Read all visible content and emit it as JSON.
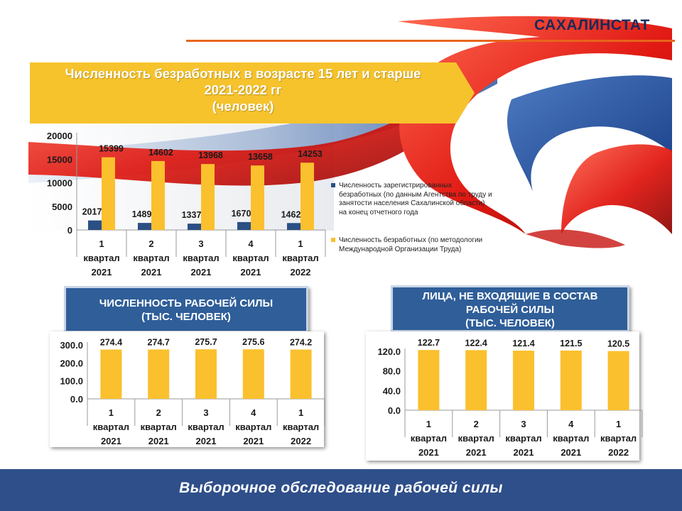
{
  "header": {
    "brand": "САХАЛИНСТАТ"
  },
  "banner": {
    "title_line1": "Численность безработных в возрасте 15 лет и старше",
    "title_line2": "2021-2022 гг",
    "title_line3": "(человек)"
  },
  "colors": {
    "gold": "#fbc02d",
    "navy": "#2a4f84",
    "banner": "#f6c32d",
    "footer": "#2f4f8a",
    "box": "#2f5e99"
  },
  "legend": {
    "registered": "Численность зарегистрированных безработных (по данным Агентства по труду и занятости населения Сахалинской области) на конец отчетного года",
    "ilo": "Численность безработных (по методологии Международной Организации Труда)"
  },
  "labor_box": {
    "line1": "ЧИСЛЕННОСТЬ РАБОЧЕЙ СИЛЫ",
    "line2": "(ТЫС. ЧЕЛОВЕК)"
  },
  "notlabor_box": {
    "line1": "ЛИЦА, НЕ ВХОДЯЩИЕ В СОСТАВ",
    "line2": "РАБОЧЕЙ СИЛЫ",
    "line3": "(ТЫС. ЧЕЛОВЕК)"
  },
  "footer": {
    "text": "Выборочное обследование рабочей силы"
  },
  "chart_data": [
    {
      "type": "bar",
      "title": "Численность безработных в возрасте 15 лет и старше 2021-2022 гг (человек)",
      "categories": [
        [
          "1",
          "квартал",
          "2021"
        ],
        [
          "2",
          "квартал",
          "2021"
        ],
        [
          "3",
          "квартал",
          "2021"
        ],
        [
          "4",
          "квартал",
          "2021"
        ],
        [
          "1",
          "квартал",
          "2022"
        ]
      ],
      "series": [
        {
          "name": "Численность зарегистрированных безработных (по данным Агентства по труду и занятости населения Сахалинской области) на конец отчетного года",
          "color": "#2a4f84",
          "values": [
            2017,
            1489,
            1337,
            1670,
            1462
          ]
        },
        {
          "name": "Численность безработных (по методологии Международной Организации Труда)",
          "color": "#fbc02d",
          "values": [
            15399,
            14602,
            13968,
            13658,
            14253
          ]
        }
      ],
      "ylim": [
        0,
        20000
      ],
      "yticks": [
        "0",
        "5000",
        "10000",
        "15000",
        "20000"
      ],
      "yticks_values": [
        0,
        5000,
        10000,
        15000,
        20000
      ],
      "legend": "right"
    },
    {
      "type": "bar",
      "title": "ЧИСЛЕННОСТЬ РАБОЧЕЙ СИЛЫ (ТЫС. ЧЕЛОВЕК)",
      "categories": [
        [
          "1",
          "квартал",
          "2021"
        ],
        [
          "2",
          "квартал",
          "2021"
        ],
        [
          "3",
          "квартал",
          "2021"
        ],
        [
          "4",
          "квартал",
          "2021"
        ],
        [
          "1",
          "квартал",
          "2022"
        ]
      ],
      "values": [
        274.4,
        274.7,
        275.7,
        275.6,
        274.2
      ],
      "labels": [
        "274.4",
        "274.7",
        "275.7",
        "275.6",
        "274.2"
      ],
      "ylim": [
        0,
        300
      ],
      "yticks": [
        "0.0",
        "100.0",
        "200.0",
        "300.0"
      ],
      "yticks_values": [
        0,
        100,
        200,
        300
      ]
    },
    {
      "type": "bar",
      "title": "ЛИЦА, НЕ ВХОДЯЩИЕ В СОСТАВ РАБОЧЕЙ СИЛЫ (ТЫС. ЧЕЛОВЕК)",
      "categories": [
        [
          "1",
          "квартал",
          "2021"
        ],
        [
          "2",
          "квартал",
          "2021"
        ],
        [
          "3",
          "квартал",
          "2021"
        ],
        [
          "4",
          "квартал",
          "2021"
        ],
        [
          "1",
          "квартал",
          "2022"
        ]
      ],
      "values": [
        122.7,
        122.4,
        121.4,
        121.5,
        120.5
      ],
      "labels": [
        "122.7",
        "122.4",
        "121.4",
        "121.5",
        "120.5"
      ],
      "ylim": [
        0,
        120
      ],
      "yticks": [
        "0.0",
        "40.0",
        "80.0",
        "120.0"
      ],
      "yticks_values": [
        0,
        40,
        80,
        120
      ]
    }
  ]
}
